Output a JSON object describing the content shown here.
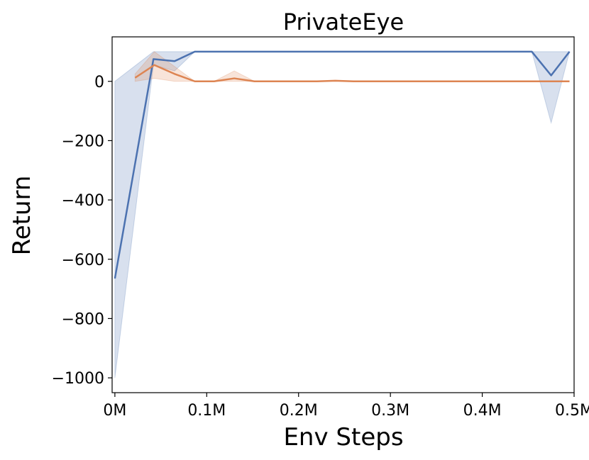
{
  "chart_data": {
    "type": "line",
    "title": "PrivateEye",
    "xlabel": "Env Steps",
    "ylabel": "Return",
    "xlim": [
      -0.003,
      0.5
    ],
    "ylim": [
      -1050,
      150
    ],
    "x_ticks": [
      {
        "value": 0.0,
        "label": "0M"
      },
      {
        "value": 0.1,
        "label": "0.1M"
      },
      {
        "value": 0.2,
        "label": "0.2M"
      },
      {
        "value": 0.3,
        "label": "0.3M"
      },
      {
        "value": 0.4,
        "label": "0.4M"
      },
      {
        "value": 0.5,
        "label": "0.5M"
      }
    ],
    "y_ticks": [
      {
        "value": 0,
        "label": "0"
      },
      {
        "value": -200,
        "label": "−200"
      },
      {
        "value": -400,
        "label": "−400"
      },
      {
        "value": -600,
        "label": "−600"
      },
      {
        "value": -800,
        "label": "−800"
      },
      {
        "value": -1000,
        "label": "−1000"
      }
    ],
    "grid": false,
    "series": [
      {
        "color": "#4c72b0",
        "x": [
          0.0,
          0.042,
          0.065,
          0.087,
          0.2,
          0.3,
          0.4,
          0.454,
          0.475,
          0.495
        ],
        "y": [
          -665,
          75,
          68,
          100,
          100,
          100,
          100,
          100,
          20,
          100
        ],
        "lower": [
          -1000,
          55,
          35,
          100,
          100,
          100,
          100,
          100,
          -140,
          100
        ],
        "upper": [
          0,
          100,
          100,
          100,
          100,
          100,
          100,
          100,
          100,
          100
        ]
      },
      {
        "color": "#dd8452",
        "x": [
          0.022,
          0.043,
          0.065,
          0.087,
          0.108,
          0.13,
          0.152,
          0.22,
          0.24,
          0.26,
          0.3,
          0.4,
          0.495
        ],
        "y": [
          12,
          55,
          25,
          0,
          0,
          10,
          0,
          0,
          2,
          0,
          0,
          0,
          0
        ],
        "lower": [
          0,
          10,
          0,
          0,
          0,
          0,
          0,
          0,
          0,
          0,
          0,
          0,
          0
        ],
        "upper": [
          25,
          100,
          50,
          0,
          0,
          35,
          0,
          0,
          3,
          0,
          0,
          0,
          0
        ]
      }
    ]
  }
}
